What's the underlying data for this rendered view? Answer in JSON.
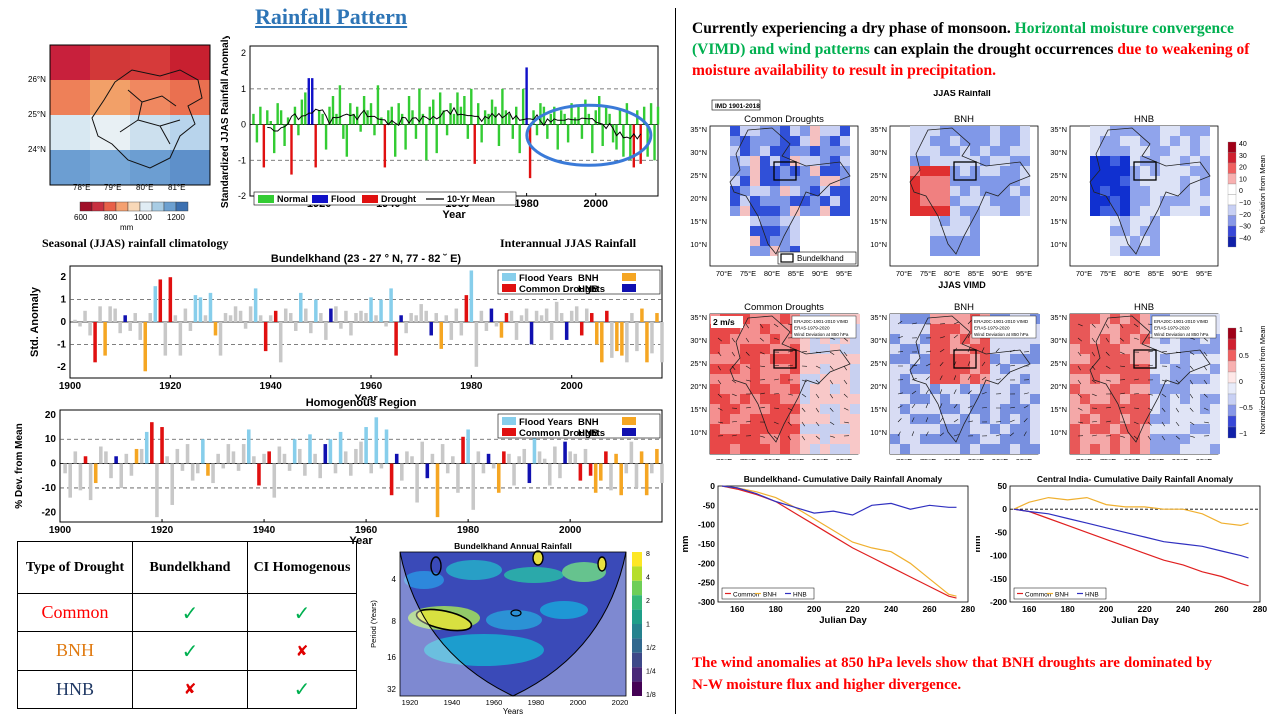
{
  "header": {
    "title": "Rainfall Pattern"
  },
  "captions": {
    "climatology": "Seasonal (JJAS) rainfall climatology",
    "interannual": "Interannual JJAS Rainfall"
  },
  "headline": {
    "part1": "Currently experiencing a dry phase of monsoon.",
    "part2": "Horizontal moisture convergence (VIMD) and wind patterns",
    "part3": "can explain the drought occurrences",
    "part4": "due to weakening of moisture availability to result in precipitation."
  },
  "footer_text": "The wind anomalies at 850 hPa levels show that BNH droughts are dominated by N-W moisture flux and higher divergence.",
  "colors": {
    "normal": "#33cc33",
    "flood": "#1010c8",
    "drought": "#e01010",
    "flood_years": "#87ceeb",
    "bnh": "#f5a623",
    "hnb": "#1010b0",
    "neutral": "#c8c8c8"
  },
  "clim_map": {
    "lat_labels": [
      "26°N",
      "25°N",
      "24°N"
    ],
    "lon_labels": [
      "78°E",
      "79°E",
      "80°E",
      "81°E"
    ],
    "colorbar_ticks": [
      "600",
      "800",
      "1000",
      "1200"
    ],
    "colorbar_unit": "mm",
    "rows": [
      [
        "#c8203c",
        "#d23838",
        "#d63a3a",
        "#c82030"
      ],
      [
        "#ee8058",
        "#f2a068",
        "#f08860",
        "#ea7050"
      ],
      [
        "#d8e8f2",
        "#e8f0f4",
        "#cce0ee",
        "#b8d4ec"
      ],
      [
        "#6c9ed2",
        "#78a8d8",
        "#6c9ed2",
        "#5e90ca"
      ]
    ]
  },
  "table": {
    "headers": [
      "Type of Drought",
      "Bundelkhand",
      "CI Homogenous"
    ],
    "rows": [
      {
        "type": "Common",
        "bundelkhand": "✓",
        "ci": "✓"
      },
      {
        "type": "BNH",
        "bundelkhand": "✓",
        "ci": "✘"
      },
      {
        "type": "HNB",
        "bundelkhand": "✘",
        "ci": "✓"
      }
    ]
  },
  "panels": {
    "imd_tag": "IMD 1901-2018",
    "jjas_rain_title": "JJAS Rainfall",
    "jjas_vimd_title": "JJAS VIMD",
    "sub_titles": [
      "Common Droughts",
      "BNH",
      "HNB"
    ],
    "lat_ticks": [
      "35°N",
      "30°N",
      "25°N",
      "20°N",
      "15°N",
      "10°N"
    ],
    "lon_ticks": [
      "70°E",
      "75°E",
      "80°E",
      "85°E",
      "90°E",
      "95°E"
    ],
    "legend_box": "Bundelkhand",
    "rain_cbar_ticks": [
      "40",
      "30",
      "20",
      "10",
      "0",
      "−10",
      "−20",
      "−30",
      "−40"
    ],
    "rain_cbar_label": "% Deviation from Mean",
    "vimd_cbar_ticks": [
      "1",
      "0.5",
      "0",
      "−0.5",
      "−1"
    ],
    "vimd_cbar_label": "Normalized Deviation from Mean",
    "wind_scale": "2 m/s",
    "vimd_notes": [
      [
        "ERA20C-1901-2010 VIMD",
        "ERA5-1979-2020",
        "Wind Deviation at 850 hPa"
      ],
      [
        "ERA20C-1901-2010 VIMD",
        "ERA5-1979-2020",
        "Wind Deviation at 850 hPa"
      ],
      [
        "ERA20C-1901-2010 VIMD",
        "ERA5-1979-2020",
        "Wind Deviation at 850 hPa"
      ]
    ]
  },
  "chart_data": [
    {
      "type": "bar",
      "id": "interannual",
      "title": "",
      "xlabel": "Year",
      "ylabel": "Standardized JJAS Rainfall Anomaly",
      "xlim": [
        1900,
        2018
      ],
      "ylim": [
        -2,
        2.2
      ],
      "xticks": [
        1920,
        1940,
        1960,
        1980,
        2000
      ],
      "legend": [
        "Normal",
        "Flood",
        "Drought",
        "10-Yr Mean"
      ],
      "x_start": 1901,
      "values": [
        0.3,
        -0.5,
        0.5,
        -1.2,
        0.4,
        0.1,
        -0.8,
        0.6,
        0.4,
        -0.6,
        0.2,
        -1.4,
        0.5,
        -0.3,
        0.7,
        0.9,
        1.3,
        1.3,
        -1.2,
        0.4,
        0.3,
        -0.7,
        0.5,
        0.8,
        0.3,
        1.1,
        -0.4,
        -0.9,
        0.6,
        0.3,
        0.5,
        -0.2,
        0.8,
        0.4,
        0.6,
        -0.3,
        1.1,
        0.2,
        -1.2,
        0.4,
        0.5,
        -0.9,
        0.6,
        0.3,
        -0.7,
        0.8,
        0.4,
        -0.4,
        1.0,
        0.3,
        -1.0,
        0.5,
        0.7,
        -0.8,
        0.9,
        0.4,
        -0.3,
        0.6,
        0.3,
        0.9,
        0.5,
        0.8,
        -0.4,
        1.0,
        -1.1,
        0.6,
        -0.5,
        0.4,
        0.3,
        0.7,
        0.5,
        -0.6,
        1.0,
        0.4,
        0.3,
        -0.4,
        0.5,
        -0.8,
        1.0,
        1.6,
        -1.5,
        0.4,
        -0.3,
        0.6,
        0.5,
        -0.4,
        0.3,
        0.5,
        -0.7,
        0.4,
        0.3,
        -0.5,
        0.6,
        0.2,
        0.5,
        -0.4,
        0.7,
        0.3,
        -0.8,
        0.4,
        0.8,
        -0.6,
        0.5,
        0.3,
        -0.5,
        -0.7,
        0.4,
        -0.9,
        0.6,
        -1.0,
        -1.2,
        0.4,
        -1.1,
        0.5,
        -0.9,
        0.6,
        -1.0,
        0.5
      ]
    },
    {
      "type": "bar",
      "id": "bundelkhand",
      "title": "Bundelkhand (23  - 27  ° N, 77  - 82 ˘ E)",
      "xlabel": "Year",
      "ylabel": "Std. Anomaly",
      "xlim": [
        1900,
        2018
      ],
      "ylim": [
        -2.5,
        2.5
      ],
      "xticks": [
        1900,
        1920,
        1940,
        1960,
        1980,
        2000
      ],
      "yticks": [
        -2,
        -1,
        0,
        1,
        2
      ],
      "legend": [
        "Flood Years",
        "Common Droughts",
        "BNH",
        "HNB"
      ],
      "x_start": 1901,
      "values": [
        0.1,
        -0.2,
        0.5,
        -0.6,
        -1.8,
        0.7,
        -1.5,
        0.7,
        0.6,
        -0.5,
        0.3,
        -0.4,
        0.4,
        -0.8,
        -2.2,
        0.4,
        1.6,
        1.9,
        -1.5,
        2.0,
        0.3,
        -1.5,
        0.6,
        -0.4,
        1.2,
        1.1,
        0.3,
        1.3,
        -0.6,
        -1.5,
        0.4,
        0.3,
        0.7,
        0.5,
        -0.3,
        0.7,
        1.5,
        0.3,
        -1.3,
        0.3,
        0.5,
        -1.8,
        0.6,
        0.4,
        -0.4,
        1.3,
        0.6,
        -0.5,
        1.0,
        0.4,
        -0.8,
        0.6,
        0.7,
        -0.3,
        0.5,
        -0.6,
        0.4,
        0.5,
        0.4,
        1.1,
        0.3,
        1.0,
        -0.2,
        1.5,
        -1.5,
        0.3,
        -0.5,
        0.4,
        0.3,
        0.8,
        0.5,
        -0.6,
        0.4,
        -1.2,
        0.3,
        -0.8,
        0.6,
        -0.6,
        1.2,
        2.3,
        -2.0,
        0.5,
        -0.4,
        0.6,
        -0.2,
        -0.7,
        0.4,
        0.5,
        -0.8,
        0.3,
        0.6,
        -1.0,
        0.5,
        0.3,
        0.6,
        -0.8,
        0.9,
        0.4,
        -0.8,
        0.5,
        0.7,
        -0.6,
        0.6,
        0.4,
        -1.0,
        -1.8,
        0.5,
        -1.6,
        -1.3,
        -1.5,
        -1.8,
        0.4,
        -1.3,
        0.6,
        -1.8,
        -1.4,
        0.4,
        -1.8
      ]
    },
    {
      "type": "bar",
      "id": "homogenous",
      "title": "Homogenous Region",
      "xlabel": "Year",
      "ylabel": "% Dev. from Mean",
      "xlim": [
        1900,
        2018
      ],
      "ylim": [
        -24,
        22
      ],
      "xticks": [
        1900,
        1920,
        1940,
        1960,
        1980,
        2000
      ],
      "yticks": [
        -20,
        -10,
        0,
        10,
        20
      ],
      "legend": [
        "Flood Years",
        "Common Droughts",
        "BNH",
        "HNB"
      ],
      "x_start": 1901,
      "values": [
        -4,
        -14,
        5,
        -11,
        3,
        -15,
        -8,
        7,
        5,
        -6,
        3,
        -10,
        4,
        -5,
        6,
        6,
        13,
        17,
        -22,
        15,
        3,
        -17,
        6,
        -3,
        8,
        -7,
        -4,
        10,
        -5,
        -8,
        4,
        -2,
        8,
        5,
        -3,
        8,
        14,
        3,
        -9,
        4,
        5,
        -14,
        7,
        4,
        -3,
        10,
        6,
        -5,
        12,
        4,
        -6,
        8,
        10,
        -4,
        13,
        5,
        -5,
        6,
        9,
        15,
        -4,
        19,
        -2,
        14,
        -13,
        4,
        -7,
        5,
        3,
        -16,
        9,
        -6,
        4,
        -22,
        8,
        -4,
        3,
        -12,
        11,
        14,
        -19,
        5,
        -4,
        4,
        -2,
        -12,
        5,
        4,
        -9,
        3,
        6,
        -8,
        12,
        5,
        2,
        -9,
        7,
        -6,
        9,
        5,
        4,
        -7,
        6,
        -5,
        -12,
        -7,
        5,
        -11,
        4,
        -13,
        -4,
        9,
        -10,
        5,
        -13,
        -4,
        6,
        -8
      ]
    },
    {
      "type": "line",
      "id": "bundelkhand_cumulative",
      "title": "Bundelkhand- Cumulative Daily Rainfall Anomaly",
      "xlabel": "Julian Day",
      "ylabel": "mm",
      "xlim": [
        150,
        280
      ],
      "ylim": [
        -300,
        0
      ],
      "xticks": [
        160,
        180,
        200,
        220,
        240,
        260,
        280
      ],
      "yticks": [
        0,
        -50,
        -100,
        -150,
        -200,
        -250,
        -300
      ],
      "x": [
        152,
        160,
        170,
        180,
        190,
        200,
        210,
        220,
        230,
        240,
        250,
        260,
        270,
        274
      ],
      "series": [
        {
          "name": "Common",
          "color": "#e02020",
          "values": [
            0,
            -8,
            -22,
            -40,
            -70,
            -100,
            -130,
            -160,
            -185,
            -210,
            -235,
            -260,
            -285,
            -290
          ]
        },
        {
          "name": "BNH",
          "color": "#f0b030",
          "values": [
            0,
            -5,
            -15,
            -30,
            -55,
            -85,
            -115,
            -145,
            -160,
            -170,
            -200,
            -240,
            -280,
            -285
          ]
        },
        {
          "name": "HNB",
          "color": "#3030c0",
          "values": [
            0,
            -5,
            -20,
            -40,
            -55,
            -70,
            -65,
            -75,
            -50,
            -45,
            -60,
            -50,
            -55,
            -55
          ]
        }
      ]
    },
    {
      "type": "line",
      "id": "central_india_cumulative",
      "title": "Central India- Cumulative Daily Rainfall Anomaly",
      "xlabel": "Julian Day",
      "ylabel": "mm",
      "xlim": [
        150,
        280
      ],
      "ylim": [
        -200,
        50
      ],
      "xticks": [
        160,
        180,
        200,
        220,
        240,
        260,
        280
      ],
      "yticks": [
        50,
        0,
        -50,
        -100,
        -150,
        -200
      ],
      "x": [
        152,
        160,
        170,
        180,
        190,
        200,
        210,
        220,
        230,
        240,
        250,
        260,
        270,
        274
      ],
      "series": [
        {
          "name": "Common",
          "color": "#e02020",
          "values": [
            0,
            -5,
            -20,
            -35,
            -50,
            -65,
            -80,
            -95,
            -110,
            -120,
            -135,
            -145,
            -160,
            -165
          ]
        },
        {
          "name": "BNH",
          "color": "#f0b030",
          "values": [
            0,
            15,
            25,
            20,
            25,
            10,
            5,
            5,
            0,
            0,
            -10,
            -30,
            -35,
            -30
          ]
        },
        {
          "name": "HNB",
          "color": "#3030c0",
          "values": [
            0,
            -5,
            -10,
            -20,
            -30,
            -40,
            -50,
            -60,
            -70,
            -75,
            -80,
            -90,
            -100,
            -105
          ]
        }
      ]
    },
    {
      "type": "heatmap",
      "id": "wavelet",
      "title": "Bundelkhand Annual Rainfall",
      "xlabel": "Years",
      "ylabel": "Period (Years)",
      "xticks": [
        1920,
        1940,
        1960,
        1980,
        2000,
        2020
      ],
      "yticks": [
        4,
        8,
        16,
        32
      ],
      "colorbar_ticks": [
        "8",
        "4",
        "2",
        "1",
        "1/2",
        "1/4",
        "1/8"
      ]
    }
  ]
}
